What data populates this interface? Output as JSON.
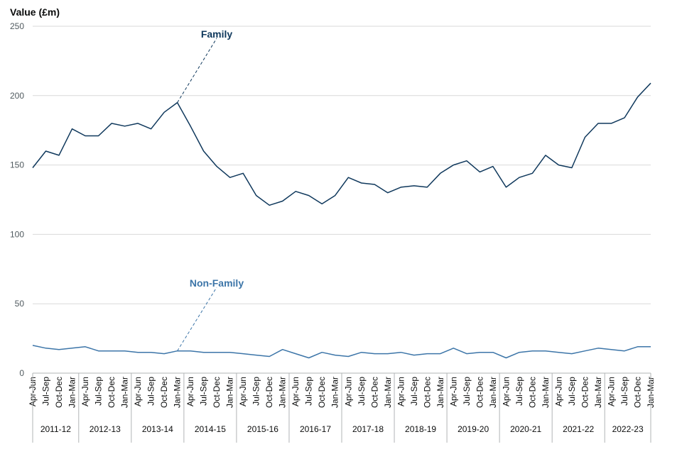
{
  "chart_data": {
    "type": "line",
    "ylabel": "Value (£m)",
    "ylim": [
      0,
      250
    ],
    "yticks": [
      0,
      50,
      100,
      150,
      200,
      250
    ],
    "grid": true,
    "quarters": [
      "Apr-Jun",
      "Jul-Sep",
      "Oct-Dec",
      "Jan-Mar"
    ],
    "years": [
      "2011-12",
      "2012-13",
      "2013-14",
      "2014-15",
      "2015-16",
      "2016-17",
      "2017-18",
      "2018-19",
      "2019-20",
      "2020-21",
      "2021-22",
      "2022-23"
    ],
    "series": [
      {
        "name": "Family",
        "color": "#0f385c",
        "values": [
          148,
          160,
          157,
          176,
          171,
          171,
          180,
          178,
          180,
          176,
          188,
          195,
          178,
          160,
          149,
          141,
          144,
          128,
          121,
          124,
          131,
          128,
          122,
          128,
          141,
          137,
          136,
          130,
          134,
          135,
          134,
          144,
          150,
          153,
          145,
          149,
          134,
          141,
          144,
          157,
          150,
          148,
          170,
          180,
          180,
          184,
          199,
          209
        ]
      },
      {
        "name": "Non-Family",
        "color": "#3c75a8",
        "values": [
          20,
          18,
          17,
          18,
          19,
          16,
          16,
          16,
          15,
          15,
          14,
          16,
          16,
          15,
          15,
          15,
          14,
          13,
          12,
          17,
          14,
          11,
          15,
          13,
          12,
          15,
          14,
          14,
          15,
          13,
          14,
          14,
          18,
          14,
          15,
          15,
          11,
          15,
          16,
          16,
          15,
          14,
          16,
          18,
          17,
          16,
          19,
          19
        ]
      }
    ]
  }
}
